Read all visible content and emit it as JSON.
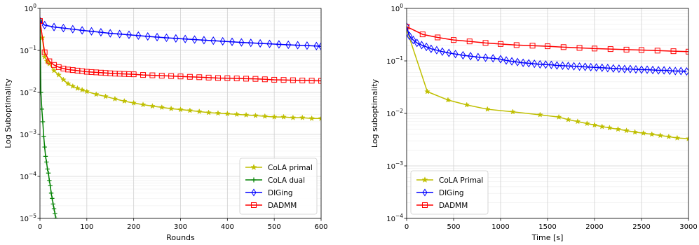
{
  "chart_data": [
    {
      "type": "line",
      "xlabel": "Rounds",
      "ylabel": "Log Suboptimality",
      "xlim": [
        0,
        600
      ],
      "ylim": [
        1e-05,
        1
      ],
      "yscale": "log",
      "grid": true,
      "legend_position": "bottom-right",
      "x_ticks": [
        0,
        100,
        200,
        300,
        400,
        500,
        600
      ],
      "y_ticks": [
        "10^-5",
        "10^-4",
        "10^-3",
        "10^-2",
        "10^-1",
        "10^0"
      ],
      "series": [
        {
          "name": "CoLA primal",
          "color": "#bfbf00",
          "marker": "star",
          "x": [
            0,
            5,
            10,
            15,
            20,
            30,
            40,
            50,
            60,
            70,
            80,
            90,
            100,
            120,
            140,
            160,
            180,
            200,
            220,
            240,
            260,
            280,
            300,
            320,
            340,
            360,
            380,
            400,
            420,
            440,
            460,
            480,
            500,
            520,
            540,
            560,
            580,
            600
          ],
          "y": [
            0.5,
            0.2,
            0.07,
            0.055,
            0.048,
            0.033,
            0.026,
            0.02,
            0.016,
            0.014,
            0.0125,
            0.0115,
            0.0105,
            0.009,
            0.008,
            0.007,
            0.0062,
            0.0056,
            0.0051,
            0.0047,
            0.0044,
            0.0041,
            0.0039,
            0.0037,
            0.0035,
            0.0033,
            0.0032,
            0.0031,
            0.003,
            0.0029,
            0.0028,
            0.0027,
            0.0026,
            0.0026,
            0.0025,
            0.0025,
            0.0024,
            0.0024
          ]
        },
        {
          "name": "CoLA dual",
          "color": "#008000",
          "marker": "plus",
          "x": [
            0,
            2,
            4,
            6,
            8,
            10,
            12,
            14,
            16,
            18,
            20,
            22,
            24,
            26,
            28,
            30,
            32,
            34
          ],
          "y": [
            0.5,
            0.01,
            0.004,
            0.002,
            0.0009,
            0.0005,
            0.0003,
            0.00022,
            0.00015,
            0.00012,
            8e-05,
            6e-05,
            4e-05,
            3e-05,
            2.2e-05,
            1.7e-05,
            1.3e-05,
            1e-05
          ]
        },
        {
          "name": "DIGing",
          "color": "#0000ff",
          "marker": "diamond",
          "x": [
            0,
            10,
            30,
            50,
            70,
            90,
            110,
            130,
            150,
            170,
            190,
            210,
            230,
            250,
            270,
            290,
            310,
            330,
            350,
            370,
            390,
            410,
            430,
            450,
            470,
            490,
            510,
            530,
            550,
            570,
            590,
            600
          ],
          "y": [
            0.5,
            0.4,
            0.36,
            0.34,
            0.32,
            0.3,
            0.285,
            0.27,
            0.255,
            0.245,
            0.235,
            0.225,
            0.215,
            0.207,
            0.2,
            0.193,
            0.187,
            0.181,
            0.175,
            0.17,
            0.165,
            0.16,
            0.155,
            0.151,
            0.147,
            0.143,
            0.139,
            0.136,
            0.133,
            0.13,
            0.127,
            0.125
          ]
        },
        {
          "name": "DADMM",
          "color": "#ff0000",
          "marker": "square",
          "x": [
            0,
            10,
            20,
            30,
            40,
            50,
            60,
            70,
            80,
            90,
            100,
            110,
            120,
            130,
            140,
            150,
            160,
            170,
            180,
            190,
            200,
            220,
            240,
            260,
            280,
            300,
            320,
            340,
            360,
            380,
            400,
            420,
            440,
            460,
            480,
            500,
            520,
            540,
            560,
            580,
            600
          ],
          "y": [
            0.5,
            0.09,
            0.055,
            0.045,
            0.04,
            0.037,
            0.035,
            0.034,
            0.033,
            0.032,
            0.031,
            0.0305,
            0.03,
            0.0295,
            0.029,
            0.0285,
            0.028,
            0.0278,
            0.0275,
            0.0272,
            0.027,
            0.026,
            0.0255,
            0.025,
            0.0245,
            0.024,
            0.0235,
            0.023,
            0.0225,
            0.022,
            0.0218,
            0.0215,
            0.0212,
            0.021,
            0.0205,
            0.02,
            0.0198,
            0.0195,
            0.0192,
            0.019,
            0.0188
          ]
        }
      ]
    },
    {
      "type": "line",
      "xlabel": "Time [s]",
      "ylabel": "Log suboptimality",
      "xlim": [
        0,
        3000
      ],
      "ylim": [
        0.0001,
        1
      ],
      "yscale": "log",
      "grid": true,
      "legend_position": "bottom-left",
      "x_ticks": [
        0,
        500,
        1000,
        1500,
        2000,
        2500,
        3000
      ],
      "y_ticks": [
        "10^-4",
        "10^-3",
        "10^-2",
        "10^-1",
        "10^0"
      ],
      "series": [
        {
          "name": "CoLA Primal",
          "color": "#bfbf00",
          "marker": "star",
          "x": [
            0,
            220,
            440,
            640,
            860,
            1130,
            1420,
            1620,
            1720,
            1820,
            1920,
            2000,
            2080,
            2160,
            2250,
            2340,
            2430,
            2520,
            2610,
            2700,
            2790,
            2880,
            3000
          ],
          "y": [
            0.4,
            0.026,
            0.018,
            0.0145,
            0.012,
            0.0107,
            0.0094,
            0.0085,
            0.0076,
            0.007,
            0.0064,
            0.006,
            0.0056,
            0.0053,
            0.005,
            0.0047,
            0.0044,
            0.0042,
            0.004,
            0.0038,
            0.0036,
            0.0034,
            0.0033
          ]
        },
        {
          "name": "DIGing",
          "color": "#0000ff",
          "marker": "diamond",
          "x": [
            0,
            30,
            70,
            110,
            160,
            210,
            260,
            320,
            380,
            450,
            520,
            600,
            680,
            760,
            840,
            920,
            1000,
            1060,
            1120,
            1180,
            1240,
            1300,
            1360,
            1420,
            1480,
            1540,
            1600,
            1660,
            1720,
            1780,
            1840,
            1900,
            1960,
            2020,
            2080,
            2140,
            2200,
            2260,
            2320,
            2380,
            2440,
            2500,
            2560,
            2620,
            2680,
            2740,
            2800,
            2860,
            2920,
            2980
          ],
          "y": [
            0.45,
            0.3,
            0.25,
            0.22,
            0.2,
            0.185,
            0.17,
            0.16,
            0.15,
            0.142,
            0.135,
            0.128,
            0.123,
            0.118,
            0.115,
            0.112,
            0.108,
            0.102,
            0.098,
            0.095,
            0.092,
            0.09,
            0.088,
            0.086,
            0.085,
            0.084,
            0.082,
            0.081,
            0.08,
            0.079,
            0.078,
            0.077,
            0.076,
            0.075,
            0.074,
            0.073,
            0.072,
            0.071,
            0.07,
            0.07,
            0.069,
            0.068,
            0.068,
            0.067,
            0.066,
            0.066,
            0.065,
            0.064,
            0.064,
            0.063
          ]
        },
        {
          "name": "DADMM",
          "color": "#ff0000",
          "marker": "square",
          "x": [
            0,
            170,
            330,
            500,
            670,
            840,
            1000,
            1170,
            1340,
            1500,
            1670,
            1840,
            2000,
            2170,
            2340,
            2500,
            2670,
            2840,
            3000
          ],
          "y": [
            0.45,
            0.32,
            0.28,
            0.25,
            0.235,
            0.22,
            0.21,
            0.2,
            0.195,
            0.19,
            0.183,
            0.177,
            0.172,
            0.168,
            0.164,
            0.161,
            0.157,
            0.153,
            0.15
          ]
        }
      ]
    }
  ]
}
